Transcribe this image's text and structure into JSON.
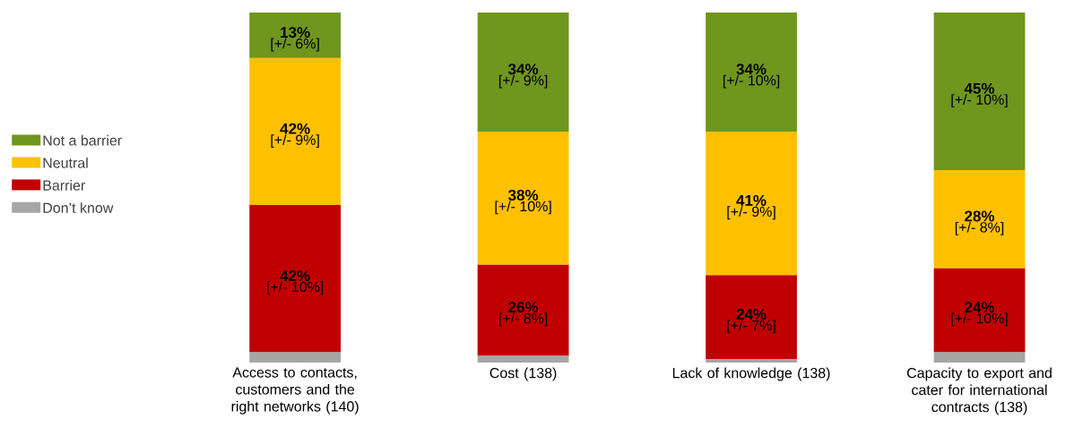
{
  "chart_data": {
    "type": "bar",
    "stacked": true,
    "categories": [
      "Access to contacts, customers and the right networks  (140)",
      "Cost  (138)",
      "Lack of knowledge  (138)",
      "Capacity to export and cater for international contracts (138)"
    ],
    "series": [
      {
        "name": "Don’t know",
        "color": "#a6a6a6",
        "values": [
          3,
          2,
          1,
          3
        ]
      },
      {
        "name": "Barrier",
        "color": "#c00000",
        "values": [
          42,
          26,
          24,
          24
        ],
        "value_labels": [
          "42%",
          "26%",
          "24%",
          "24%"
        ]
      },
      {
        "name": "Neutral",
        "color": "#ffc000",
        "values": [
          42,
          38,
          41,
          28
        ],
        "value_labels": [
          "42%",
          "38%",
          "41%",
          "28%"
        ]
      },
      {
        "name": "Not a barrier",
        "color": "#6f961d",
        "values": [
          13,
          34,
          34,
          45
        ],
        "value_labels": [
          "13%",
          "34%",
          "34%",
          "45%"
        ]
      }
    ],
    "ylim": [
      0,
      100
    ],
    "tick_labels": "x",
    "legend": "left",
    "annotations": [
      "[+/- 10%]",
      "[+/- 9%]",
      "[+/- 6%]",
      "[+/- 8%]",
      "[+/- 10%]",
      "[+/- 9%]",
      "[+/- 7%]",
      "[+/- 9%]",
      "[+/- 10%]",
      "[+/- 10%]",
      "[+/- 8%]",
      "[+/- 10%]"
    ]
  }
}
